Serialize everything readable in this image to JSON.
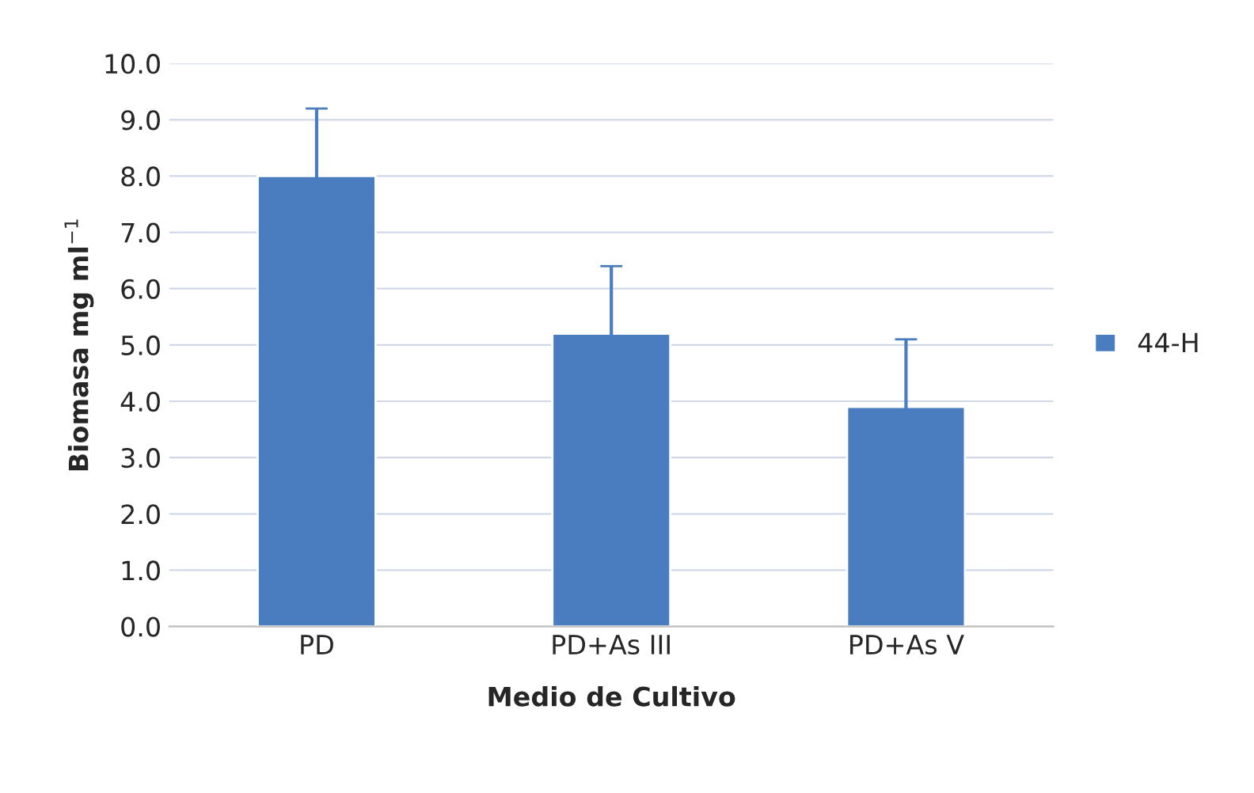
{
  "chart_data": {
    "type": "bar",
    "xlabel": "Medio de Cultivo",
    "ylabel": "Biomasa mg ml$^{−1}$",
    "categories": [
      "PD",
      "PD+As III",
      "PD+As V"
    ],
    "series": [
      {
        "name": "44-H",
        "color": "#4a7cc0",
        "values": [
          8.0,
          5.2,
          3.9
        ],
        "errors": [
          1.2,
          1.2,
          1.2
        ]
      }
    ],
    "ylim": [
      0,
      10
    ],
    "yticks": [
      {
        "value": 0,
        "label": "0.0"
      },
      {
        "value": 1,
        "label": "1.0"
      },
      {
        "value": 2,
        "label": "2.0"
      },
      {
        "value": 3,
        "label": "3.0"
      },
      {
        "value": 4,
        "label": "4.0"
      },
      {
        "value": 5,
        "label": "5.0"
      },
      {
        "value": 6,
        "label": "6.0"
      },
      {
        "value": 7,
        "label": "7.0"
      },
      {
        "value": 8,
        "label": "8.0"
      },
      {
        "value": 9,
        "label": "9.0"
      },
      {
        "value": 10,
        "label": "10.0"
      }
    ],
    "grid": "y",
    "legend": "right"
  }
}
